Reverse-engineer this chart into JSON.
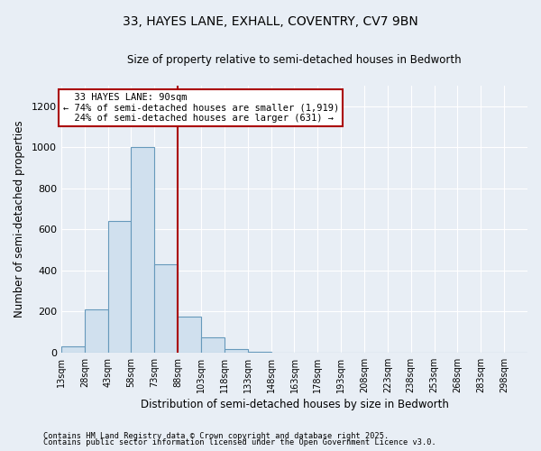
{
  "title_line1": "33, HAYES LANE, EXHALL, COVENTRY, CV7 9BN",
  "title_line2": "Size of property relative to semi-detached houses in Bedworth",
  "xlabel": "Distribution of semi-detached houses by size in Bedworth",
  "ylabel": "Number of semi-detached properties",
  "property_label": "33 HAYES LANE: 90sqm",
  "pct_smaller": 74,
  "pct_larger": 24,
  "n_smaller": 1919,
  "n_larger": 631,
  "bar_color": "#d0e0ee",
  "bar_edge_color": "#6699bb",
  "vline_color": "#aa0000",
  "annotation_box_edge": "#aa0000",
  "fig_bg_color": "#e8eef5",
  "plot_bg_color": "#e8eef5",
  "bins": [
    13,
    28,
    43,
    58,
    73,
    88,
    103,
    118,
    133,
    148,
    163,
    178,
    193,
    208,
    223,
    238,
    253,
    268,
    283,
    298,
    313
  ],
  "counts": [
    28,
    210,
    640,
    1000,
    430,
    175,
    75,
    15,
    5,
    0,
    0,
    0,
    0,
    0,
    0,
    0,
    0,
    0,
    0,
    0
  ],
  "ylim": [
    0,
    1300
  ],
  "yticks": [
    0,
    200,
    400,
    600,
    800,
    1000,
    1200
  ],
  "footnote_line1": "Contains HM Land Registry data © Crown copyright and database right 2025.",
  "footnote_line2": "Contains public sector information licensed under the Open Government Licence v3.0."
}
